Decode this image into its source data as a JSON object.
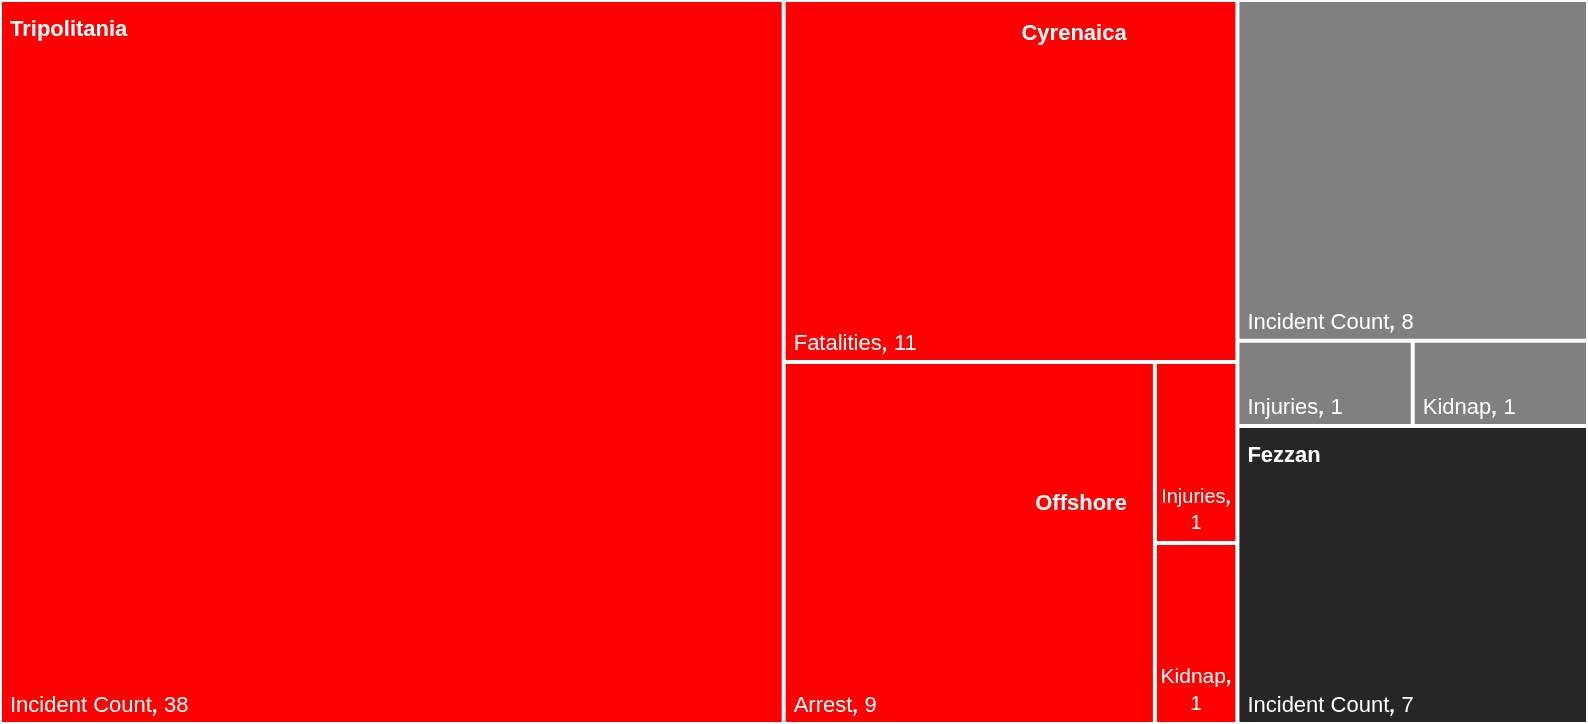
{
  "chart_data": {
    "type": "other",
    "categories": [
      "Incident Count",
      "Fatalities",
      "Arrest",
      "Injuries",
      "Kidnap",
      "Incident Count",
      "Injuries",
      "Kidnap",
      "Incident Count"
    ],
    "values": [
      38,
      11,
      9,
      1,
      1,
      8,
      1,
      1,
      7
    ],
    "colors": [
      "#ff0000",
      "#ff0000",
      "#ff0000",
      "#ff0000",
      "#ff0000",
      "#808080",
      "#808080",
      "#808080",
      "#262626"
    ],
    "annotations": [
      "Tripolitania",
      "Cyrenaica",
      "Offshore",
      "Fezzan"
    ],
    "data_labels": true
  }
}
